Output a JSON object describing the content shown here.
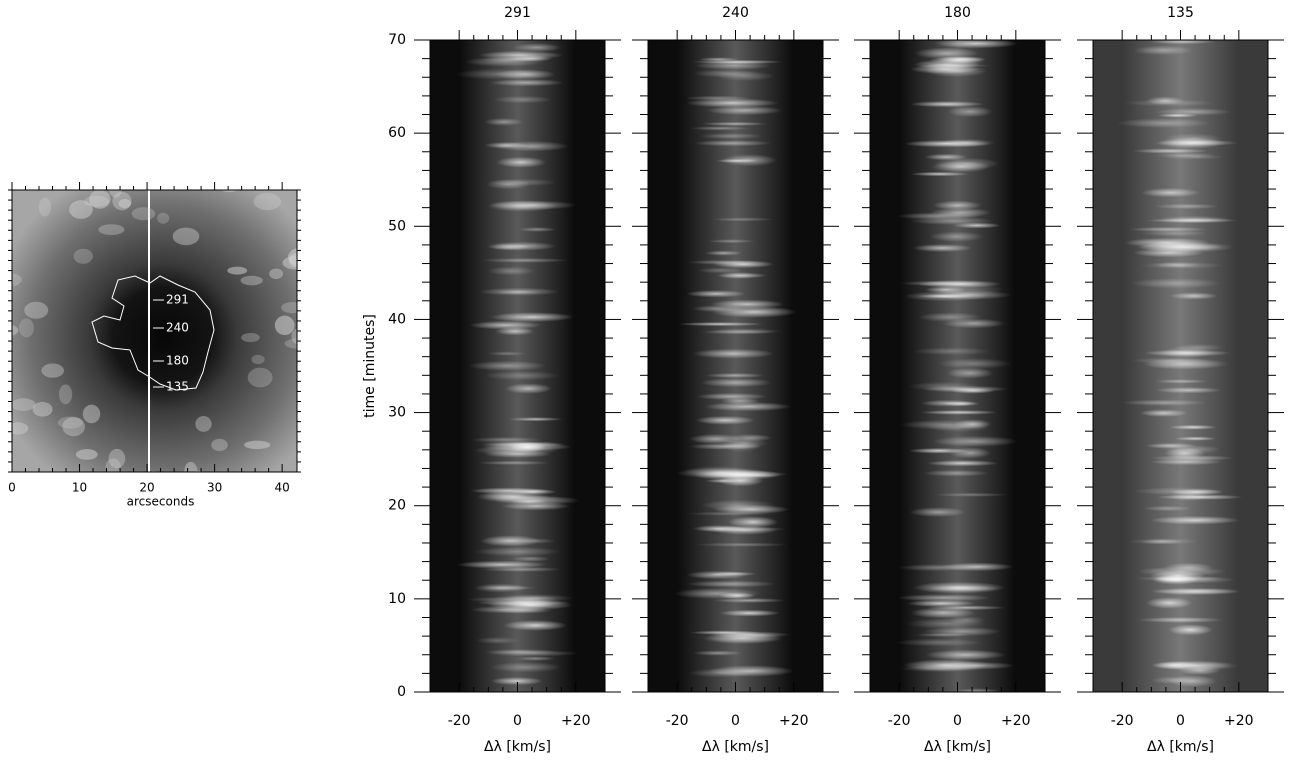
{
  "chart_data": [
    {
      "type": "image",
      "xlabel": "arcseconds",
      "xlim": [
        0,
        42.2
      ],
      "xticks": [
        0,
        10,
        20,
        30,
        40
      ],
      "annotations": [
        "291",
        "240",
        "180",
        "135"
      ]
    },
    {
      "type": "heatmap",
      "title": "291",
      "xlabel": "Δλ [km/s]",
      "ylabel": "time [minutes]",
      "xlim": [
        -30,
        30
      ],
      "xticks": [
        -20,
        0,
        {
          "value": 20,
          "label": "+20"
        }
      ],
      "ylim": [
        0,
        70
      ],
      "yticks": [
        0,
        10,
        20,
        30,
        40,
        50,
        60,
        70
      ],
      "background": "#0c0c0c"
    },
    {
      "type": "heatmap",
      "title": "240",
      "xlabel": "Δλ [km/s]",
      "xlim": [
        -30,
        30
      ],
      "xticks": [
        -20,
        0,
        {
          "value": 20,
          "label": "+20"
        }
      ],
      "ylim": [
        0,
        70
      ],
      "yticks": [
        0,
        10,
        20,
        30,
        40,
        50,
        60,
        70
      ],
      "background": "#0c0c0c"
    },
    {
      "type": "heatmap",
      "title": "180",
      "xlabel": "Δλ [km/s]",
      "xlim": [
        -30,
        30
      ],
      "xticks": [
        -20,
        0,
        {
          "value": 20,
          "label": "+20"
        }
      ],
      "ylim": [
        0,
        70
      ],
      "yticks": [
        0,
        10,
        20,
        30,
        40,
        50,
        60,
        70
      ],
      "background": "#0c0c0c"
    },
    {
      "type": "heatmap",
      "title": "135",
      "xlabel": "Δλ [km/s]",
      "xlim": [
        -30,
        30
      ],
      "xticks": [
        -20,
        0,
        {
          "value": 20,
          "label": "+20"
        }
      ],
      "ylim": [
        0,
        70
      ],
      "yticks": [
        0,
        10,
        20,
        30,
        40,
        50,
        60,
        70
      ],
      "background": "#3a3a3a"
    }
  ]
}
